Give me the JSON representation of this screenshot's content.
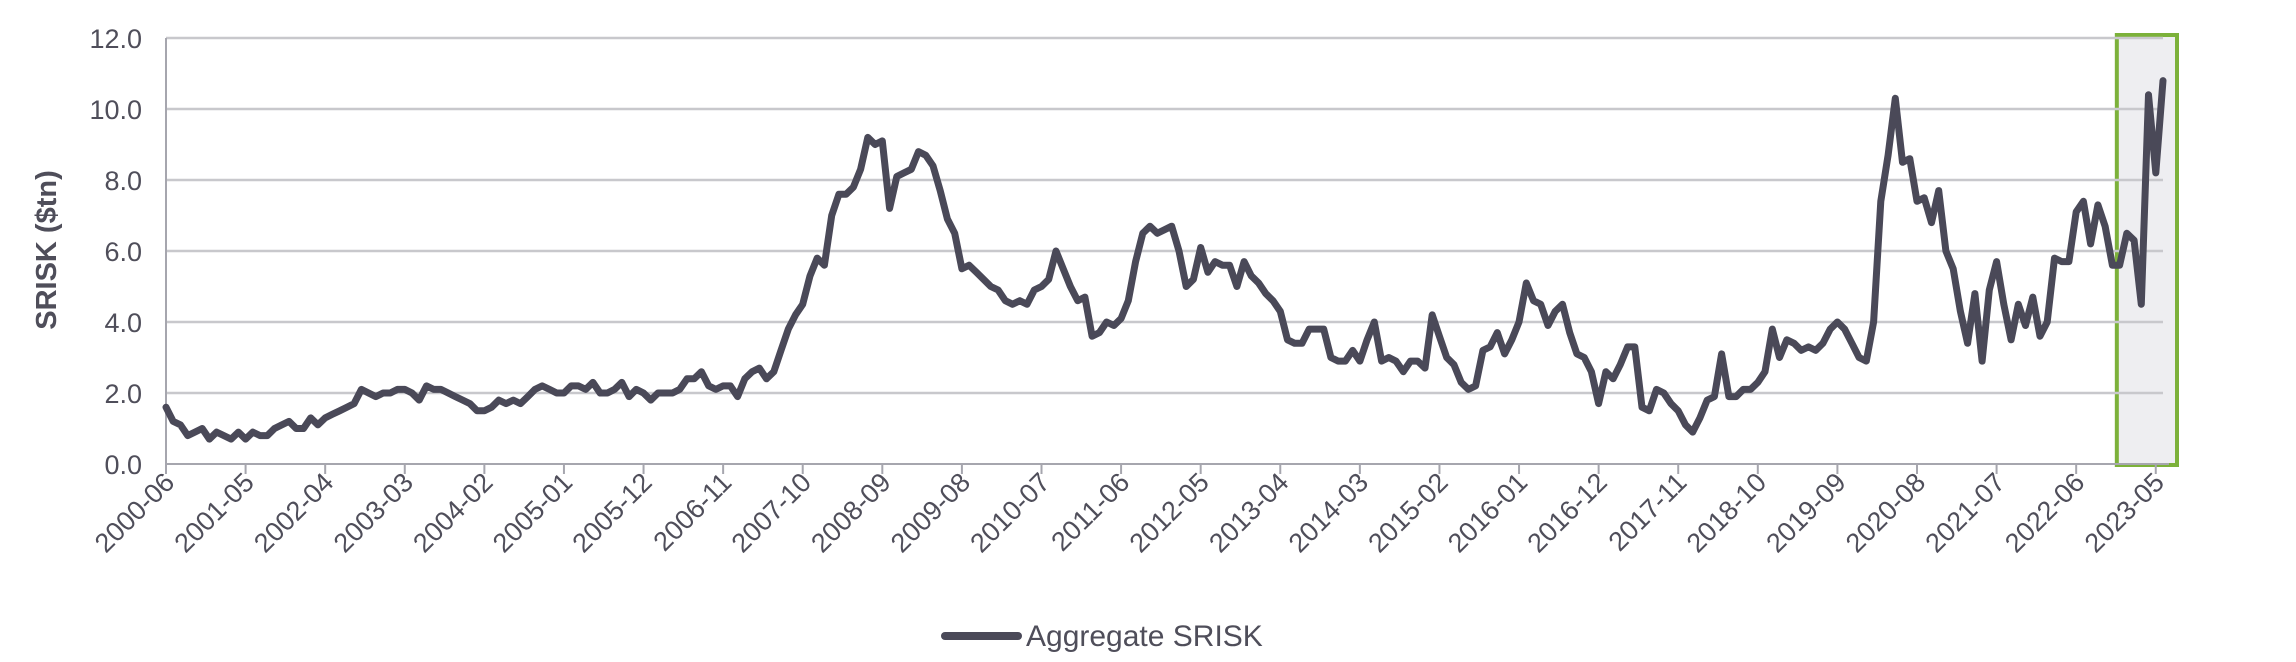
{
  "chart_data": {
    "type": "line",
    "title": "",
    "xlabel": "",
    "ylabel": "SRISK ($tn)",
    "ylim": [
      0,
      12
    ],
    "yticks": [
      "0.0",
      "2.0",
      "4.0",
      "6.0",
      "8.0",
      "10.0",
      "12.0"
    ],
    "xticks": [
      "2000-06",
      "2001-05",
      "2002-04",
      "2003-03",
      "2004-02",
      "2005-01",
      "2005-12",
      "2006-11",
      "2007-10",
      "2008-09",
      "2009-08",
      "2010-07",
      "2011-06",
      "2012-05",
      "2013-04",
      "2014-03",
      "2015-02",
      "2016-01",
      "2016-12",
      "2017-11",
      "2018-10",
      "2019-09",
      "2020-08",
      "2021-07",
      "2022-06",
      "2023-05"
    ],
    "grid": true,
    "legend_position": "bottom",
    "highlight": {
      "from": "2022-12",
      "to": "2023-05",
      "border_color": "#7cb13a",
      "fill_color": "#eeeef1"
    },
    "series": [
      {
        "name": "Aggregate SRISK",
        "color": "#4a4958",
        "values": [
          1.6,
          1.2,
          1.1,
          0.8,
          0.9,
          1.0,
          0.7,
          0.9,
          0.8,
          0.7,
          0.9,
          0.7,
          0.9,
          0.8,
          0.8,
          1.0,
          1.1,
          1.2,
          1.0,
          1.0,
          1.3,
          1.1,
          1.3,
          1.4,
          1.5,
          1.6,
          1.7,
          2.1,
          2.0,
          1.9,
          2.0,
          2.0,
          2.1,
          2.1,
          2.0,
          1.8,
          2.2,
          2.1,
          2.1,
          2.0,
          1.9,
          1.8,
          1.7,
          1.5,
          1.5,
          1.6,
          1.8,
          1.7,
          1.8,
          1.7,
          1.9,
          2.1,
          2.2,
          2.1,
          2.0,
          2.0,
          2.2,
          2.2,
          2.1,
          2.3,
          2.0,
          2.0,
          2.1,
          2.3,
          1.9,
          2.1,
          2.0,
          1.8,
          2.0,
          2.0,
          2.0,
          2.1,
          2.4,
          2.4,
          2.6,
          2.2,
          2.1,
          2.2,
          2.2,
          1.9,
          2.4,
          2.6,
          2.7,
          2.4,
          2.6,
          3.2,
          3.8,
          4.2,
          4.5,
          5.3,
          5.8,
          5.6,
          7.0,
          7.6,
          7.6,
          7.8,
          8.3,
          9.2,
          9.0,
          9.1,
          7.2,
          8.1,
          8.2,
          8.3,
          8.8,
          8.7,
          8.4,
          7.7,
          6.9,
          6.5,
          5.5,
          5.6,
          5.4,
          5.2,
          5.0,
          4.9,
          4.6,
          4.5,
          4.6,
          4.5,
          4.9,
          5.0,
          5.2,
          6.0,
          5.5,
          5.0,
          4.6,
          4.7,
          3.6,
          3.7,
          4.0,
          3.9,
          4.1,
          4.6,
          5.7,
          6.5,
          6.7,
          6.5,
          6.6,
          6.7,
          6.0,
          5.0,
          5.2,
          6.1,
          5.4,
          5.7,
          5.6,
          5.6,
          5.0,
          5.7,
          5.3,
          5.1,
          4.8,
          4.6,
          4.3,
          3.5,
          3.4,
          3.4,
          3.8,
          3.8,
          3.8,
          3.0,
          2.9,
          2.9,
          3.2,
          2.9,
          3.5,
          4.0,
          2.9,
          3.0,
          2.9,
          2.6,
          2.9,
          2.9,
          2.7,
          4.2,
          3.6,
          3.0,
          2.8,
          2.3,
          2.1,
          2.2,
          3.2,
          3.3,
          3.7,
          3.1,
          3.5,
          4.0,
          5.1,
          4.6,
          4.5,
          3.9,
          4.3,
          4.5,
          3.7,
          3.1,
          3.0,
          2.6,
          1.7,
          2.6,
          2.4,
          2.8,
          3.3,
          3.3,
          1.6,
          1.5,
          2.1,
          2.0,
          1.7,
          1.5,
          1.1,
          0.9,
          1.3,
          1.8,
          1.9,
          3.1,
          1.9,
          1.9,
          2.1,
          2.1,
          2.3,
          2.6,
          3.8,
          3.0,
          3.5,
          3.4,
          3.2,
          3.3,
          3.2,
          3.4,
          3.8,
          4.0,
          3.8,
          3.4,
          3.0,
          2.9,
          4.0,
          7.4,
          8.7,
          10.3,
          8.5,
          8.6,
          7.4,
          7.5,
          6.8,
          7.7,
          6.0,
          5.5,
          4.3,
          3.4,
          4.8,
          2.9,
          4.9,
          5.7,
          4.5,
          3.5,
          4.5,
          3.9,
          4.7,
          3.6,
          4.0,
          5.8,
          5.7,
          5.7,
          7.1,
          7.4,
          6.2,
          7.3,
          6.7,
          5.6,
          5.6,
          6.5,
          6.3,
          4.5,
          10.4,
          8.2,
          10.8
        ]
      }
    ]
  }
}
